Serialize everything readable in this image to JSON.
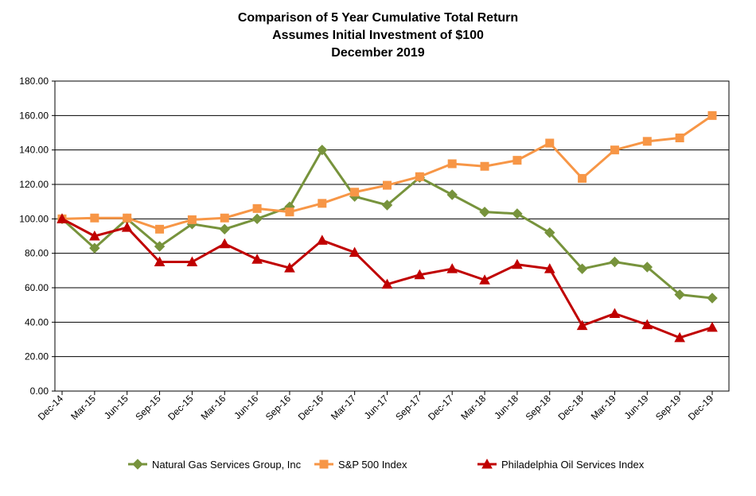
{
  "chart_data": {
    "type": "line",
    "title_lines": [
      "Comparison of 5 Year Cumulative Total Return",
      "Assumes Initial Investment of $100",
      "December 2019"
    ],
    "xlabel": "",
    "ylabel": "",
    "ylim": [
      0,
      180
    ],
    "yticks": [
      "0.00",
      "20.00",
      "40.00",
      "60.00",
      "80.00",
      "100.00",
      "120.00",
      "140.00",
      "160.00",
      "180.00"
    ],
    "grid": true,
    "legend_position": "bottom",
    "categories": [
      "Dec-14",
      "Mar-15",
      "Jun-15",
      "Sep-15",
      "Dec-15",
      "Mar-16",
      "Jun-16",
      "Sep-16",
      "Dec-16",
      "Mar-17",
      "Jun-17",
      "Sep-17",
      "Dec-17",
      "Mar-18",
      "Jun-18",
      "Sep-18",
      "Dec-18",
      "Mar-19",
      "Jun-19",
      "Sep-19",
      "Dec-19"
    ],
    "series": [
      {
        "name": "Natural Gas Services Group, Inc",
        "color": "#77933c",
        "marker": "diamond",
        "values": [
          100,
          83,
          100,
          84,
          97,
          94,
          100,
          107,
          140,
          113,
          108,
          124,
          114,
          104,
          103,
          92,
          71,
          75,
          72,
          56,
          54
        ]
      },
      {
        "name": "S&P 500 Index",
        "color": "#f79646",
        "marker": "square",
        "values": [
          100,
          100.5,
          100.5,
          94,
          99.5,
          100.5,
          106,
          104,
          109,
          115.5,
          119.5,
          124.5,
          132,
          130.5,
          134,
          144,
          123.5,
          140,
          145,
          147,
          160
        ]
      },
      {
        "name": "Philadelphia Oil Services Index",
        "color": "#c00000",
        "marker": "triangle",
        "values": [
          100,
          90,
          95,
          75,
          75,
          85.5,
          76.5,
          71.5,
          87.5,
          80.5,
          62,
          67.5,
          71,
          64.5,
          73.5,
          71,
          38,
          45,
          38.5,
          31,
          37
        ]
      }
    ]
  }
}
